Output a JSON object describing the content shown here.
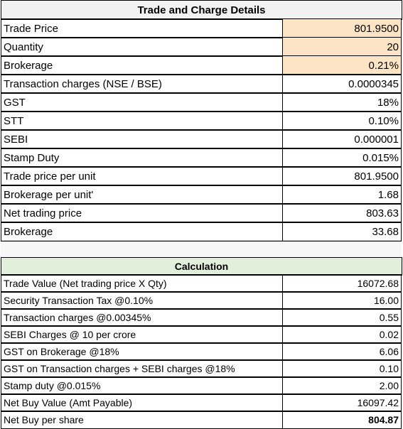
{
  "table1": {
    "title": "Trade and Charge Details",
    "rows": [
      [
        "Trade Price",
        "801.9500"
      ],
      [
        "Quantity",
        "20"
      ],
      [
        "Brokerage",
        "0.21%"
      ],
      [
        "Transaction charges (NSE / BSE)",
        "0.0000345"
      ],
      [
        "GST",
        "18%"
      ],
      [
        "STT",
        "0.10%"
      ],
      [
        "SEBI",
        "0.000001"
      ],
      [
        "Stamp Duty",
        "0.015%"
      ],
      [
        "Trade price per unit",
        "801.9500"
      ],
      [
        "Brokerage per unit'",
        "1.68"
      ],
      [
        "Net trading price",
        "803.63"
      ],
      [
        "Brokerage",
        "33.68"
      ]
    ]
  },
  "table2": {
    "title": "Calculation",
    "rows": [
      [
        "Trade Value (Net trading price X Qty)",
        "16072.68"
      ],
      [
        "Security Transaction Tax @0.10%",
        "16.00"
      ],
      [
        "Transaction charges @0.00345%",
        "0.55"
      ],
      [
        "SEBI Charges @ 10 per crore",
        "0.02"
      ],
      [
        "GST on Brokerage @18%",
        "6.06"
      ],
      [
        "GST on Transaction charges + SEBI charges @18%",
        "0.10"
      ],
      [
        "Stamp duty @0.015%",
        "2.00"
      ],
      [
        "Net Buy Value (Amt Payable)",
        "16097.42"
      ],
      [
        "Net Buy per share",
        "804.87"
      ]
    ]
  }
}
